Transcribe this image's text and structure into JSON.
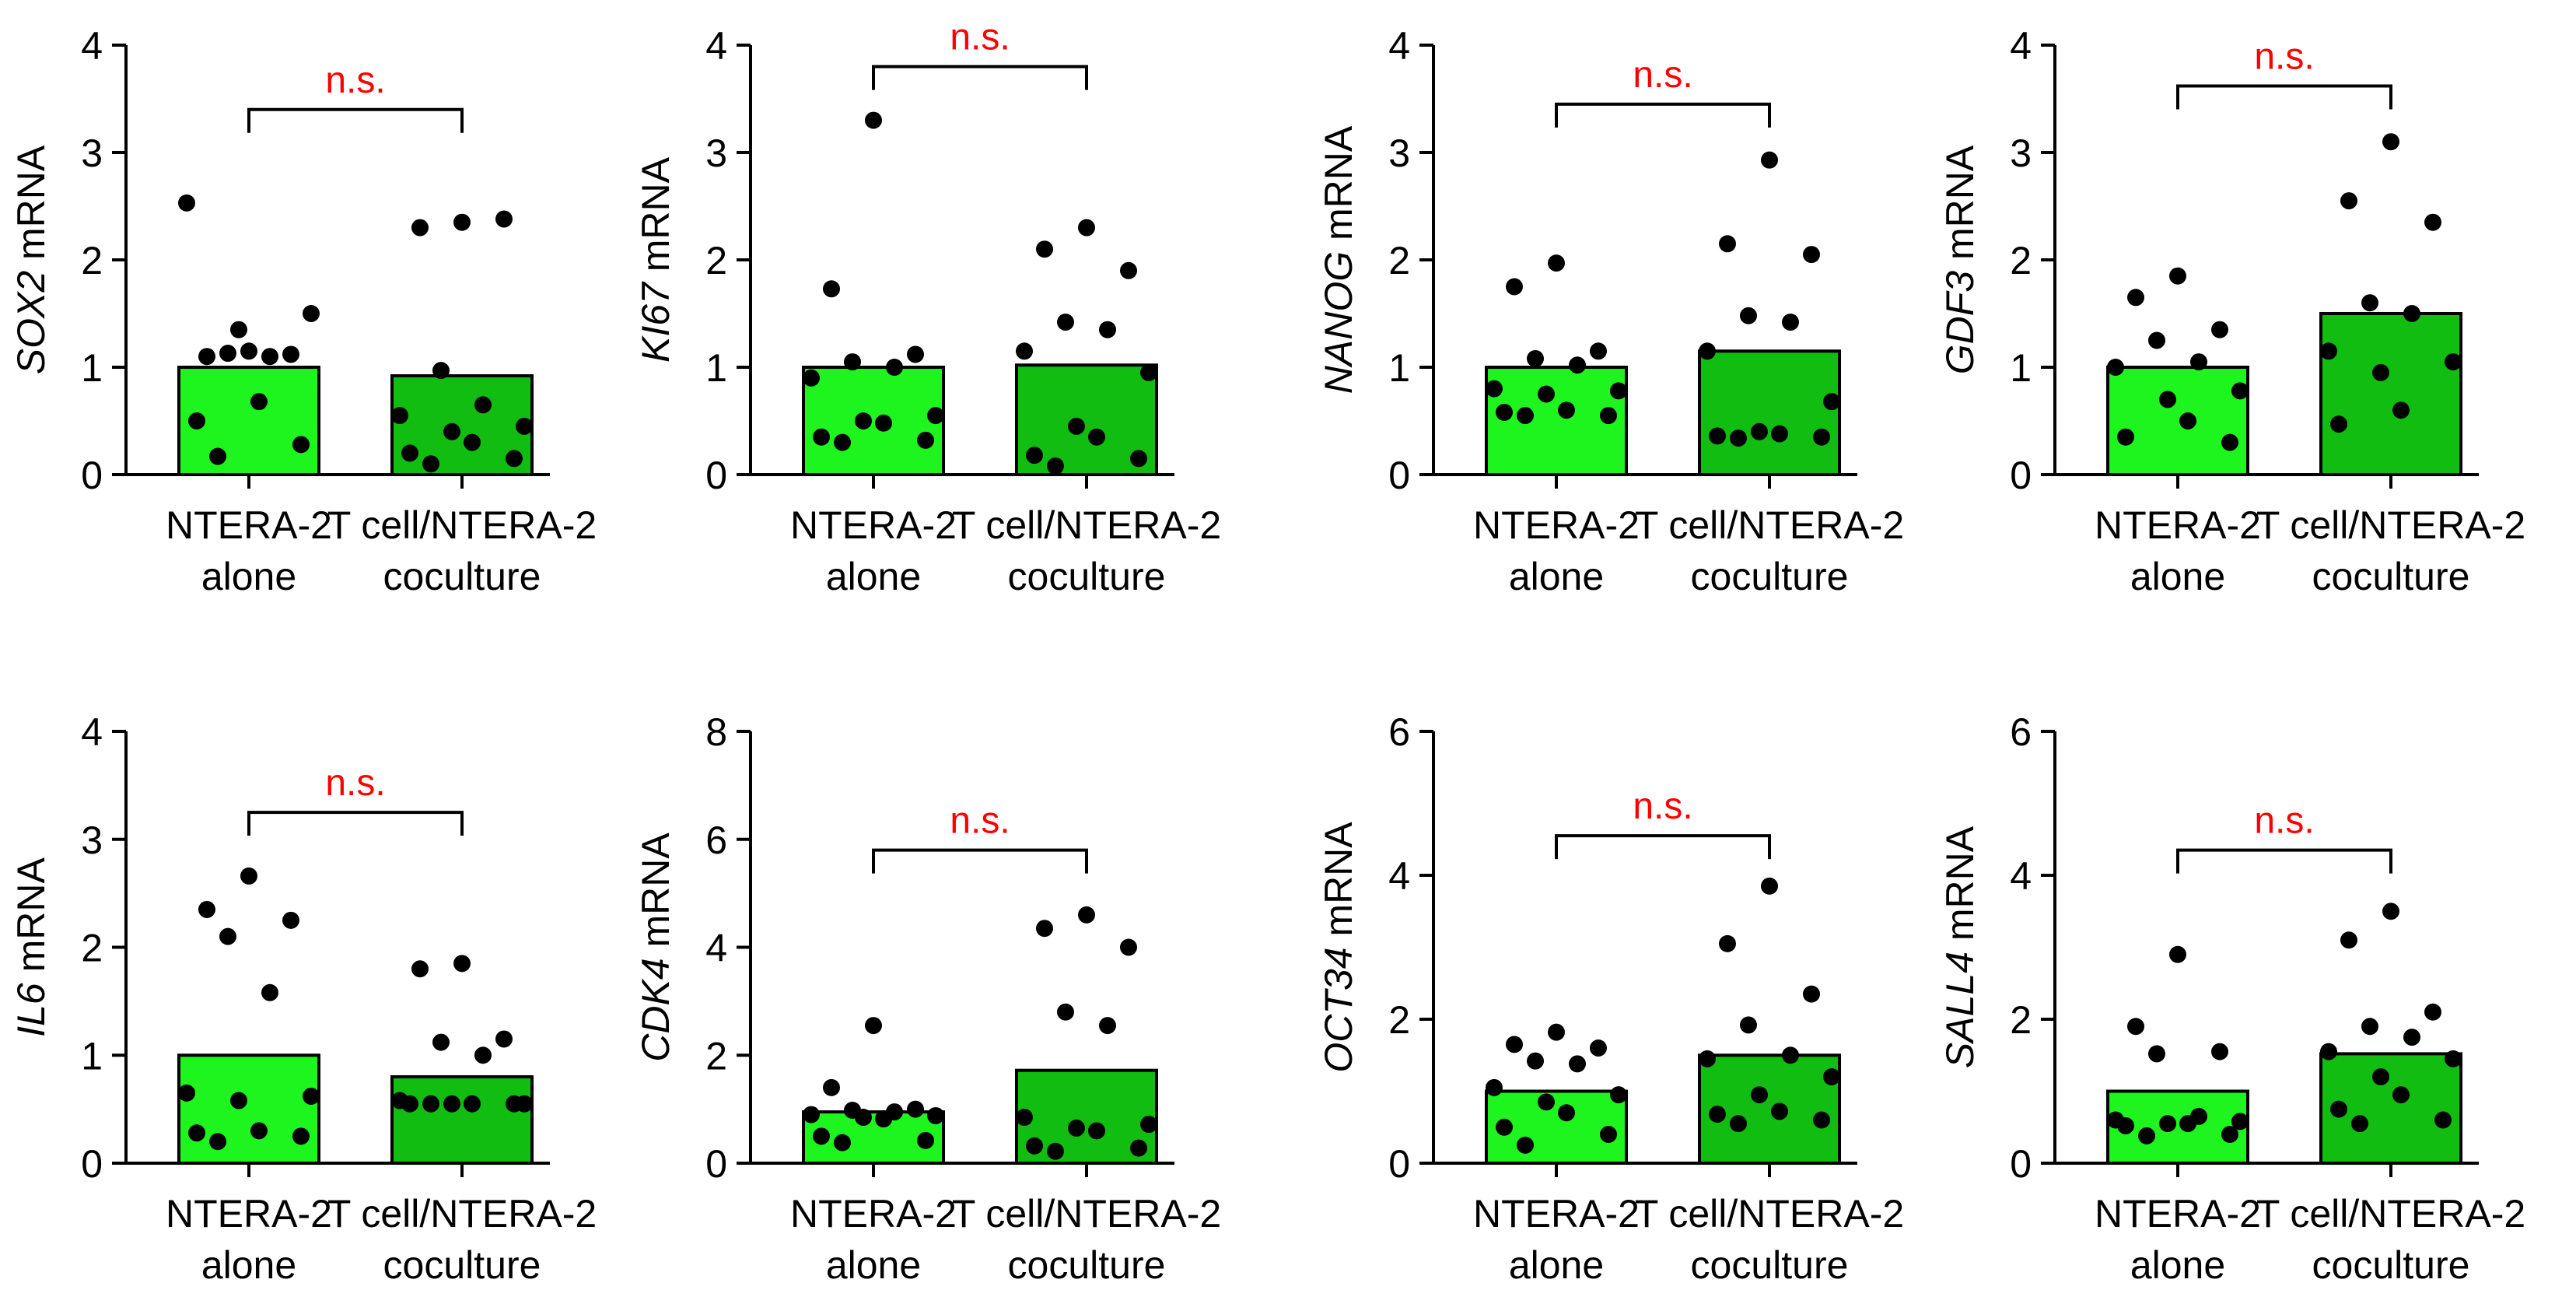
{
  "colors": {
    "bar_alone": "#1ef51e",
    "bar_coculture": "#11bd11",
    "points": "#000000",
    "significance": "#ff0000"
  },
  "chart_data": [
    {
      "type": "bar",
      "ylabel_gene": "SOX2",
      "ylabel_suffix": " mRNA",
      "ylim": [
        0,
        4
      ],
      "yticks": [
        "0",
        "1",
        "2",
        "3",
        "4"
      ],
      "categories": [
        {
          "line1": "NTERA-2",
          "line2": "alone"
        },
        {
          "line1": "T cell/NTERA-2",
          "line2": "coculture"
        }
      ],
      "means": [
        1.0,
        0.92
      ],
      "points": [
        [
          1.15,
          1.1,
          1.12,
          1.13,
          1.1,
          2.53,
          1.5,
          1.35,
          0.68,
          0.5,
          0.28,
          0.17
        ],
        [
          2.35,
          2.3,
          2.38,
          0.97,
          0.65,
          0.55,
          0.45,
          0.4,
          0.3,
          0.2,
          0.15,
          0.1
        ]
      ],
      "significance": "n.s.",
      "bracket_y": 3.4
    },
    {
      "type": "bar",
      "ylabel_gene": "KI67",
      "ylabel_suffix": " mRNA",
      "ylim": [
        0,
        4
      ],
      "yticks": [
        "0",
        "1",
        "2",
        "3",
        "4"
      ],
      "categories": [
        {
          "line1": "NTERA-2",
          "line2": "alone"
        },
        {
          "line1": "T cell/NTERA-2",
          "line2": "coculture"
        }
      ],
      "means": [
        1.0,
        1.02
      ],
      "points": [
        [
          3.3,
          1.73,
          1.12,
          1.05,
          1.0,
          0.9,
          0.55,
          0.5,
          0.48,
          0.35,
          0.32,
          0.3
        ],
        [
          2.3,
          2.1,
          1.9,
          1.42,
          1.35,
          1.15,
          0.95,
          0.45,
          0.35,
          0.18,
          0.15,
          0.08
        ]
      ],
      "significance": "n.s.",
      "bracket_y": 3.8
    },
    {
      "type": "bar",
      "ylabel_gene": "NANOG",
      "ylabel_suffix": " mRNA",
      "ylim": [
        0,
        4
      ],
      "yticks": [
        "0",
        "1",
        "2",
        "3",
        "4"
      ],
      "categories": [
        {
          "line1": "NTERA-2",
          "line2": "alone"
        },
        {
          "line1": "T cell/NTERA-2",
          "line2": "coculture"
        }
      ],
      "means": [
        1.0,
        1.15
      ],
      "points": [
        [
          1.97,
          1.75,
          1.15,
          1.08,
          1.02,
          0.8,
          0.78,
          0.75,
          0.6,
          0.58,
          0.55,
          0.55
        ],
        [
          2.93,
          2.15,
          2.05,
          1.48,
          1.42,
          1.15,
          0.68,
          0.4,
          0.38,
          0.36,
          0.35,
          0.34
        ]
      ],
      "significance": "n.s.",
      "bracket_y": 3.45
    },
    {
      "type": "bar",
      "ylabel_gene": "GDF3",
      "ylabel_suffix": " mRNA",
      "ylim": [
        0,
        4
      ],
      "yticks": [
        "0",
        "1",
        "2",
        "3",
        "4"
      ],
      "categories": [
        {
          "line1": "NTERA-2",
          "line2": "alone"
        },
        {
          "line1": "T cell/NTERA-2",
          "line2": "coculture"
        }
      ],
      "means": [
        1.0,
        1.5
      ],
      "points": [
        [
          1.85,
          1.65,
          1.35,
          1.25,
          1.05,
          1.0,
          0.78,
          0.7,
          0.5,
          0.35,
          0.3
        ],
        [
          3.1,
          2.55,
          2.35,
          1.6,
          1.5,
          1.15,
          1.05,
          0.95,
          0.6,
          0.47
        ]
      ],
      "significance": "n.s.",
      "bracket_y": 3.62
    },
    {
      "type": "bar",
      "ylabel_gene": "IL6",
      "ylabel_suffix": " mRNA",
      "ylim": [
        0,
        4
      ],
      "yticks": [
        "0",
        "1",
        "2",
        "3",
        "4"
      ],
      "categories": [
        {
          "line1": "NTERA-2",
          "line2": "alone"
        },
        {
          "line1": "T cell/NTERA-2",
          "line2": "coculture"
        }
      ],
      "means": [
        1.0,
        0.8
      ],
      "points": [
        [
          2.66,
          2.35,
          2.25,
          2.1,
          1.58,
          0.65,
          0.62,
          0.58,
          0.3,
          0.28,
          0.25,
          0.2
        ],
        [
          1.85,
          1.8,
          1.15,
          1.12,
          1.0,
          0.58,
          0.55,
          0.55,
          0.55,
          0.55,
          0.55,
          0.55
        ]
      ],
      "significance": "n.s.",
      "bracket_y": 3.25
    },
    {
      "type": "bar",
      "ylabel_gene": "CDK4",
      "ylabel_suffix": " mRNA",
      "ylim": [
        0,
        8
      ],
      "yticks": [
        "0",
        "2",
        "4",
        "6",
        "8"
      ],
      "categories": [
        {
          "line1": "NTERA-2",
          "line2": "alone"
        },
        {
          "line1": "T cell/NTERA-2",
          "line2": "coculture"
        }
      ],
      "means": [
        0.95,
        1.72
      ],
      "points": [
        [
          2.55,
          1.4,
          1.0,
          0.98,
          0.95,
          0.9,
          0.88,
          0.85,
          0.82,
          0.5,
          0.42,
          0.38
        ],
        [
          4.6,
          4.35,
          4.0,
          2.8,
          2.55,
          0.85,
          0.72,
          0.65,
          0.6,
          0.32,
          0.28,
          0.22
        ]
      ],
      "significance": "n.s.",
      "bracket_y": 5.8
    },
    {
      "type": "bar",
      "ylabel_gene": "OCT34",
      "ylabel_suffix": " mRNA",
      "ylim": [
        0,
        6
      ],
      "yticks": [
        "0",
        "2",
        "4",
        "6"
      ],
      "categories": [
        {
          "line1": "NTERA-2",
          "line2": "alone"
        },
        {
          "line1": "T cell/NTERA-2",
          "line2": "coculture"
        }
      ],
      "means": [
        1.0,
        1.5
      ],
      "points": [
        [
          1.82,
          1.65,
          1.6,
          1.42,
          1.38,
          1.05,
          0.95,
          0.85,
          0.7,
          0.5,
          0.4,
          0.25
        ],
        [
          3.85,
          3.05,
          2.35,
          1.92,
          1.5,
          1.45,
          1.2,
          0.95,
          0.72,
          0.68,
          0.6,
          0.55
        ]
      ],
      "significance": "n.s.",
      "bracket_y": 4.55
    },
    {
      "type": "bar",
      "ylabel_gene": "SALL4",
      "ylabel_suffix": " mRNA",
      "ylim": [
        0,
        6
      ],
      "yticks": [
        "0",
        "2",
        "4",
        "6"
      ],
      "categories": [
        {
          "line1": "NTERA-2",
          "line2": "alone"
        },
        {
          "line1": "T cell/NTERA-2",
          "line2": "coculture"
        }
      ],
      "means": [
        1.0,
        1.52
      ],
      "points": [
        [
          2.9,
          1.9,
          1.55,
          1.52,
          0.65,
          0.6,
          0.58,
          0.55,
          0.55,
          0.52,
          0.4,
          0.38
        ],
        [
          3.5,
          3.1,
          2.1,
          1.9,
          1.75,
          1.55,
          1.45,
          1.2,
          0.95,
          0.75,
          0.6,
          0.55
        ]
      ],
      "significance": "n.s.",
      "bracket_y": 4.35
    }
  ]
}
